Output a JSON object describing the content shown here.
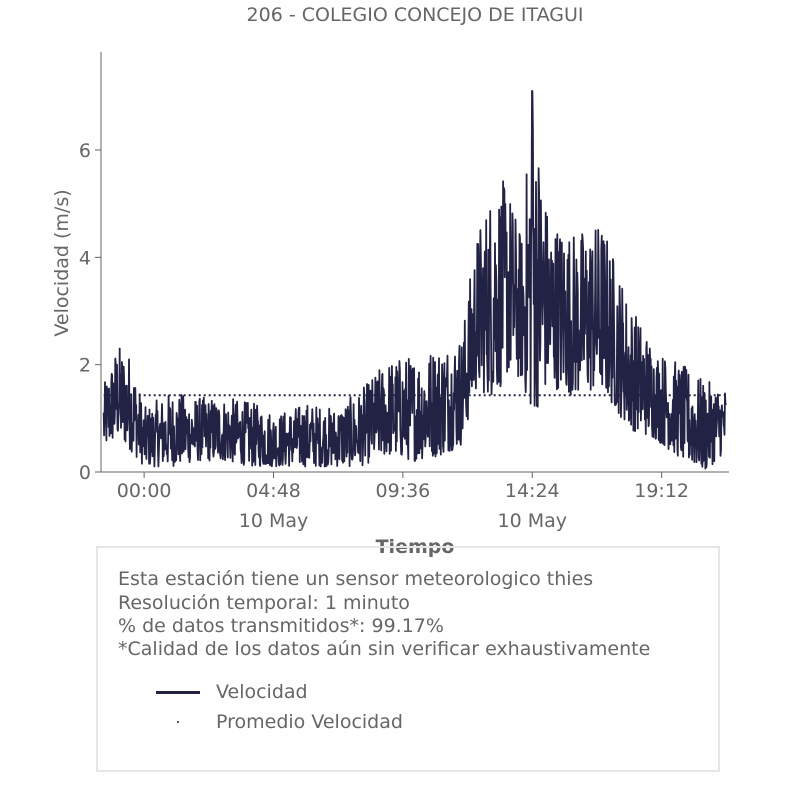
{
  "chart_data": {
    "type": "line",
    "title": "206 - COLEGIO CONCEJO DE ITAGUI",
    "xlabel": "Tiempo",
    "ylabel": "Velocidad (m/s)",
    "x_range_hours": [
      -1.6,
      21.7
    ],
    "ylim": [
      0,
      7.8
    ],
    "y_ticks": [
      0,
      2,
      4,
      6
    ],
    "x_ticks": [
      {
        "hour": 0.0,
        "label": "00:00",
        "sublabel": ""
      },
      {
        "hour": 4.8,
        "label": "04:48",
        "sublabel": "10 May"
      },
      {
        "hour": 9.6,
        "label": "09:36",
        "sublabel": ""
      },
      {
        "hour": 14.4,
        "label": "14:24",
        "sublabel": "10 May"
      },
      {
        "hour": 19.2,
        "label": "19:12",
        "sublabel": ""
      }
    ],
    "grid": false,
    "series": [
      {
        "name": "Velocidad",
        "color": "#222244",
        "style": "solid",
        "envelope": [
          {
            "hour": -1.5,
            "low": 0.4,
            "high": 1.6
          },
          {
            "hour": -1.0,
            "low": 0.6,
            "high": 2.4
          },
          {
            "hour": -0.5,
            "low": 0.4,
            "high": 2.2
          },
          {
            "hour": 0.0,
            "low": 0.1,
            "high": 1.2
          },
          {
            "hour": 1.0,
            "low": 0.1,
            "high": 1.5
          },
          {
            "hour": 2.0,
            "low": 0.2,
            "high": 1.4
          },
          {
            "hour": 3.0,
            "low": 0.2,
            "high": 1.4
          },
          {
            "hour": 4.0,
            "low": 0.1,
            "high": 1.3
          },
          {
            "hour": 5.0,
            "low": 0.1,
            "high": 1.1
          },
          {
            "hour": 6.0,
            "low": 0.1,
            "high": 1.3
          },
          {
            "hour": 7.0,
            "low": 0.1,
            "high": 1.2
          },
          {
            "hour": 8.0,
            "low": 0.1,
            "high": 1.5
          },
          {
            "hour": 9.0,
            "low": 0.3,
            "high": 2.1
          },
          {
            "hour": 10.0,
            "low": 0.2,
            "high": 2.2
          },
          {
            "hour": 11.0,
            "low": 0.3,
            "high": 2.4
          },
          {
            "hour": 11.8,
            "low": 0.5,
            "high": 2.6
          },
          {
            "hour": 12.3,
            "low": 1.5,
            "high": 4.4
          },
          {
            "hour": 13.0,
            "low": 1.4,
            "high": 5.5
          },
          {
            "hour": 13.5,
            "low": 1.8,
            "high": 5.4
          },
          {
            "hour": 14.0,
            "low": 1.7,
            "high": 4.4
          },
          {
            "hour": 14.4,
            "low": 1.0,
            "high": 7.1
          },
          {
            "hour": 15.0,
            "low": 1.6,
            "high": 4.8
          },
          {
            "hour": 16.0,
            "low": 1.4,
            "high": 4.5
          },
          {
            "hour": 17.0,
            "low": 1.5,
            "high": 4.7
          },
          {
            "hour": 18.0,
            "low": 0.8,
            "high": 3.2
          },
          {
            "hour": 19.0,
            "low": 0.6,
            "high": 2.3
          },
          {
            "hour": 20.0,
            "low": 0.2,
            "high": 2.0
          },
          {
            "hour": 20.8,
            "low": 0.0,
            "high": 1.7
          },
          {
            "hour": 21.6,
            "low": 0.4,
            "high": 1.6
          }
        ]
      },
      {
        "name": "Promedio Velocidad",
        "color": "#222244",
        "style": "dotted",
        "value": 1.43
      }
    ]
  },
  "info": {
    "line1": "Esta estación tiene un sensor meteorologico thies",
    "line2": "Resolución temporal: 1 minuto",
    "line3": "% de datos transmitidos*: 99.17%",
    "line4": "*Calidad de los datos aún sin verificar exhaustivamente"
  },
  "legend": {
    "item1": "Velocidad",
    "item2": "Promedio Velocidad"
  }
}
